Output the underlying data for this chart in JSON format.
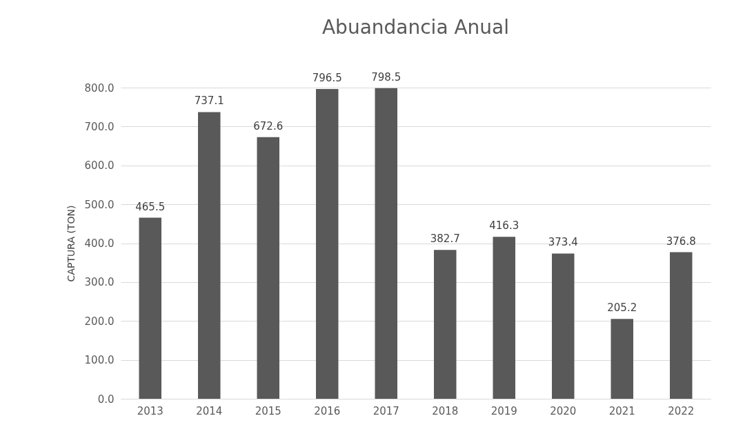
{
  "chart_data": {
    "type": "bar",
    "title": "Abuandancia Anual",
    "ylabel": "CAPTURA (TON)",
    "categories": [
      "2013",
      "2014",
      "2015",
      "2016",
      "2017",
      "2018",
      "2019",
      "2020",
      "2021",
      "2022"
    ],
    "values": [
      465.5,
      737.1,
      672.6,
      796.5,
      798.5,
      382.7,
      416.3,
      373.4,
      205.2,
      376.8
    ],
    "color": "#595959",
    "ylim": [
      0,
      800
    ],
    "yticks": [
      {
        "value": 0,
        "label": "0.0"
      },
      {
        "value": 100,
        "label": "100.0"
      },
      {
        "value": 200,
        "label": "200.0"
      },
      {
        "value": 300,
        "label": "300.0"
      },
      {
        "value": 400,
        "label": "400.0"
      },
      {
        "value": 500,
        "label": "500.0"
      },
      {
        "value": 600,
        "label": "600.0"
      },
      {
        "value": 700,
        "label": "700.0"
      },
      {
        "value": 800,
        "label": "800.0"
      }
    ],
    "grid": "y",
    "data_labels": true
  }
}
